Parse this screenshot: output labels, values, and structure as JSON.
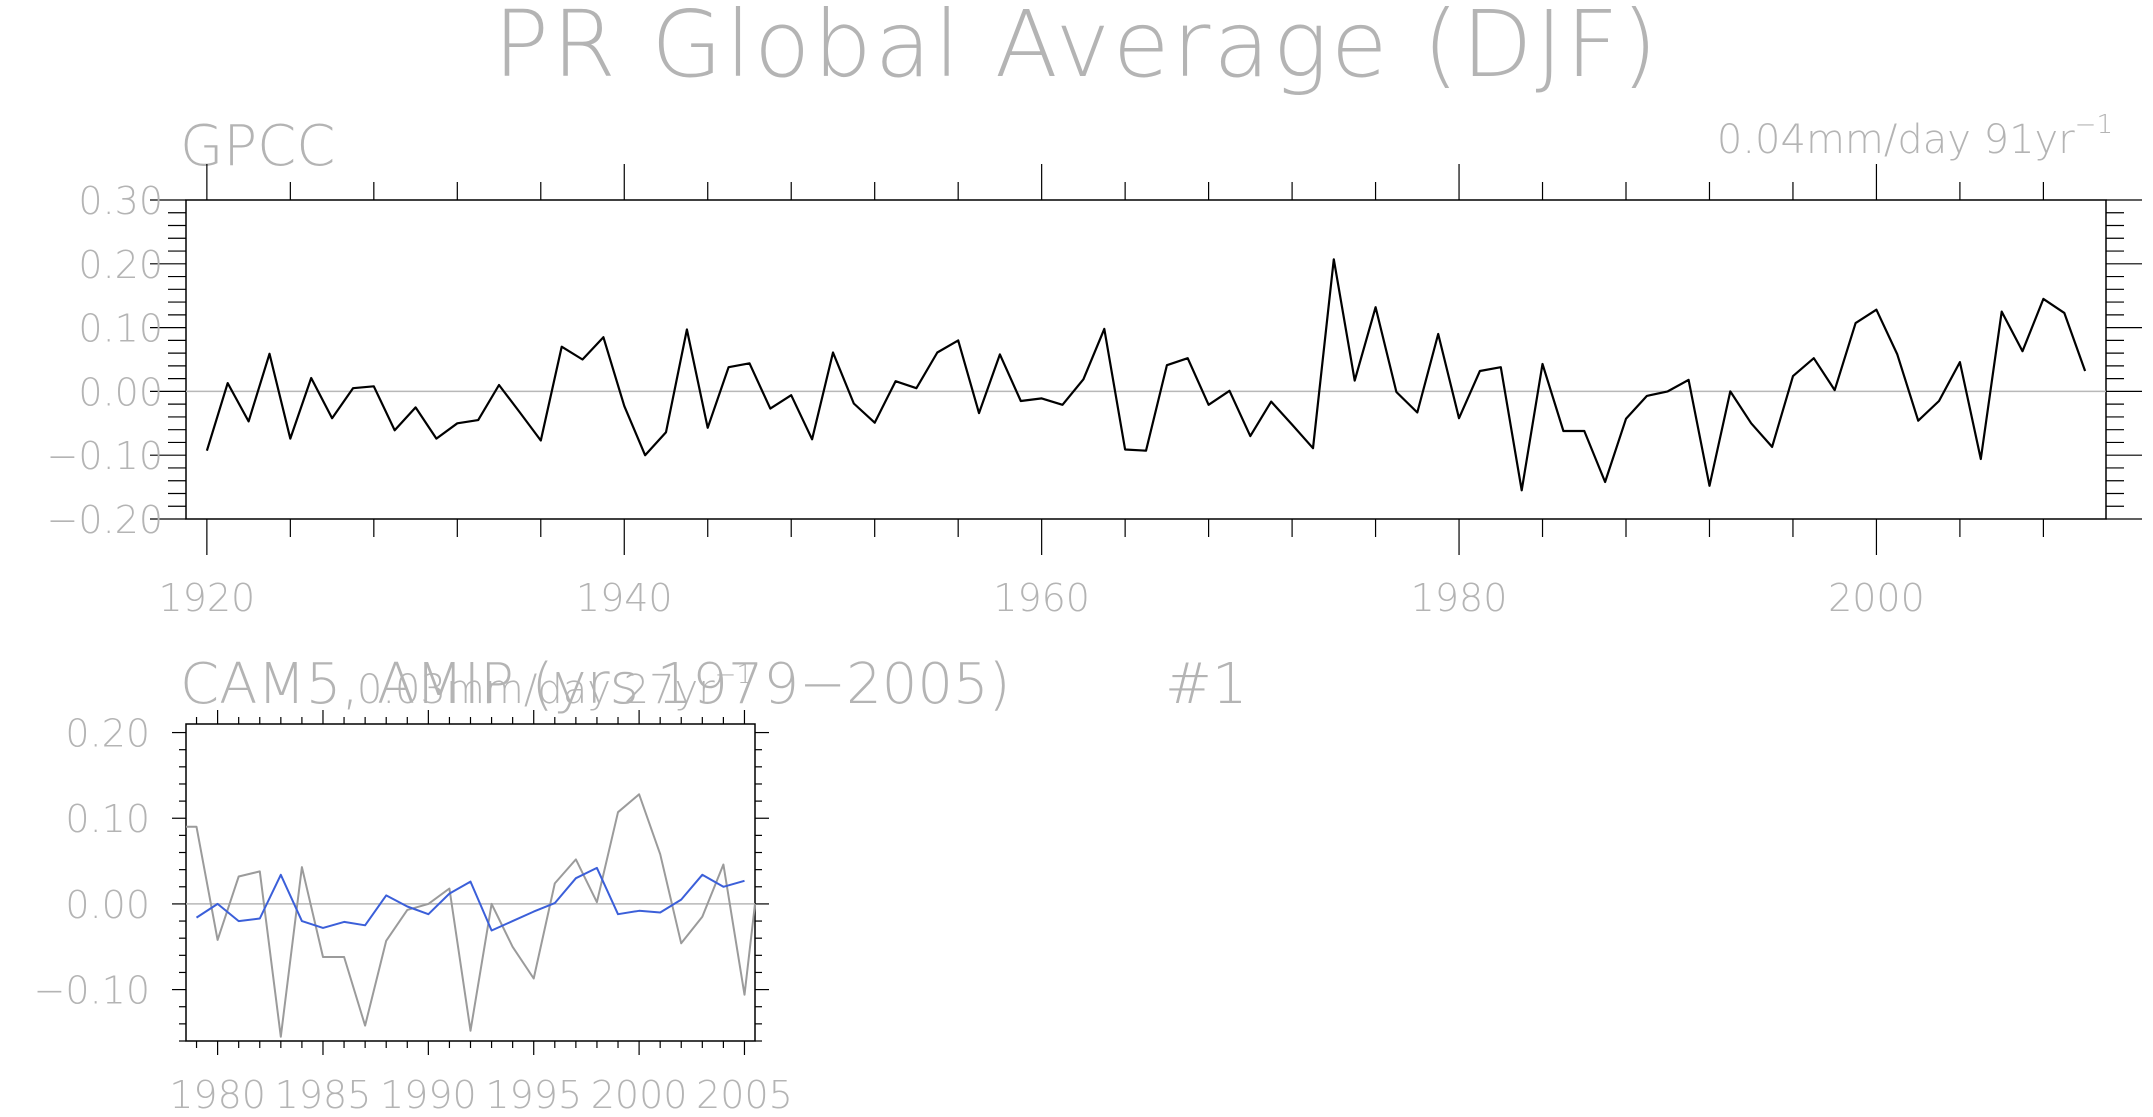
{
  "figure_title": "PR Global Average (DJF)",
  "chart_data": [
    {
      "type": "line",
      "panel_label": "GPCC",
      "trend_text": "0.04mm/day 91yr",
      "trend_exponent": "−1",
      "xlim": [
        1919,
        2011
      ],
      "ylim": [
        -0.2,
        0.3
      ],
      "x_ticks": [
        1920,
        1940,
        1960,
        1980,
        2000
      ],
      "x_tick_labels": [
        "1920",
        "1940",
        "1960",
        "1980",
        "2000"
      ],
      "y_ticks": [
        -0.2,
        -0.1,
        0.0,
        0.1,
        0.2,
        0.3
      ],
      "y_tick_labels": [
        "−0.20",
        "−0.10",
        "0.00",
        "0.10",
        "0.20",
        "0.30"
      ],
      "reference_line": 0,
      "series": [
        {
          "color": "#000000",
          "x": [
            1920,
            1921,
            1922,
            1923,
            1924,
            1925,
            1926,
            1927,
            1928,
            1929,
            1930,
            1931,
            1932,
            1933,
            1934,
            1935,
            1936,
            1937,
            1938,
            1939,
            1940,
            1941,
            1942,
            1943,
            1944,
            1945,
            1946,
            1947,
            1948,
            1949,
            1950,
            1951,
            1952,
            1953,
            1954,
            1955,
            1956,
            1957,
            1958,
            1959,
            1960,
            1961,
            1962,
            1963,
            1964,
            1965,
            1966,
            1967,
            1968,
            1969,
            1970,
            1971,
            1972,
            1973,
            1974,
            1975,
            1976,
            1977,
            1978,
            1979,
            1980,
            1981,
            1982,
            1983,
            1984,
            1985,
            1986,
            1987,
            1988,
            1989,
            1990,
            1991,
            1992,
            1993,
            1994,
            1995,
            1996,
            1997,
            1998,
            1999,
            2000,
            2001,
            2002,
            2003,
            2004,
            2005,
            2006,
            2007,
            2008,
            2009,
            2010
          ],
          "values": [
            -0.093,
            0.013,
            -0.047,
            0.059,
            -0.074,
            0.021,
            -0.042,
            0.005,
            0.008,
            -0.061,
            -0.025,
            -0.074,
            -0.05,
            -0.045,
            0.01,
            -0.033,
            -0.077,
            0.07,
            0.05,
            0.085,
            -0.023,
            -0.1,
            -0.064,
            0.097,
            -0.057,
            0.038,
            0.044,
            -0.027,
            -0.006,
            -0.075,
            0.061,
            -0.019,
            -0.049,
            0.016,
            0.005,
            0.061,
            0.08,
            -0.034,
            0.058,
            -0.015,
            -0.011,
            -0.021,
            0.019,
            0.098,
            -0.091,
            -0.093,
            0.041,
            0.052,
            -0.021,
            0.001,
            -0.07,
            -0.016,
            -0.052,
            -0.089,
            0.207,
            0.017,
            0.132,
            -0.001,
            -0.033,
            0.09,
            -0.042,
            0.032,
            0.038,
            -0.155,
            0.043,
            -0.062,
            -0.062,
            -0.142,
            -0.043,
            -0.007,
            0.0,
            0.018,
            -0.148,
            0.0,
            -0.05,
            -0.087,
            0.024,
            0.052,
            0.002,
            0.107,
            0.128,
            0.058,
            -0.046,
            -0.015,
            0.046,
            -0.106,
            0.125,
            0.063,
            0.145,
            0.123,
            0.032
          ]
        }
      ]
    },
    {
      "type": "line",
      "panel_label": "CAM5, AMIP (yrs 1979−2005)",
      "member_label": "#1",
      "trend_text": "0.03mm/day 27yr",
      "trend_exponent": "−1",
      "xlim": [
        1978.5,
        2005.5
      ],
      "ylim": [
        -0.16,
        0.21
      ],
      "x_ticks": [
        1980,
        1985,
        1990,
        1995,
        2000,
        2005
      ],
      "x_tick_labels": [
        "1980",
        "1985",
        "1990",
        "1995",
        "2000",
        "2005"
      ],
      "y_ticks": [
        -0.1,
        0.0,
        0.1,
        0.2
      ],
      "y_tick_labels": [
        "−0.10",
        "0.00",
        "0.10",
        "0.20"
      ],
      "reference_line": 0,
      "series": [
        {
          "color": "#9b9b9b",
          "x": [
            1978.5,
            1979,
            1980,
            1981,
            1982,
            1983,
            1984,
            1985,
            1986,
            1987,
            1988,
            1989,
            1990,
            1991,
            1992,
            1993,
            1994,
            1995,
            1996,
            1997,
            1998,
            1999,
            2000,
            2001,
            2002,
            2003,
            2004,
            2005,
            2005.5
          ],
          "values": [
            0.09,
            0.09,
            -0.042,
            0.032,
            0.038,
            -0.155,
            0.043,
            -0.062,
            -0.062,
            -0.142,
            -0.043,
            -0.007,
            0.0,
            0.018,
            -0.148,
            0.0,
            -0.05,
            -0.087,
            0.024,
            0.052,
            0.002,
            0.107,
            0.128,
            0.058,
            -0.046,
            -0.015,
            0.046,
            -0.106,
            0.0
          ]
        },
        {
          "color": "#3b5fd9",
          "x": [
            1979,
            1980,
            1981,
            1982,
            1983,
            1984,
            1985,
            1986,
            1987,
            1988,
            1989,
            1990,
            1991,
            1992,
            1993,
            1994,
            1995,
            1996,
            1997,
            1998,
            1999,
            2000,
            2001,
            2002,
            2003,
            2004,
            2005
          ],
          "values": [
            -0.016,
            0.0,
            -0.02,
            -0.017,
            0.034,
            -0.02,
            -0.028,
            -0.021,
            -0.025,
            0.01,
            -0.003,
            -0.012,
            0.012,
            0.026,
            -0.031,
            -0.02,
            -0.009,
            0.001,
            0.03,
            0.042,
            -0.012,
            -0.008,
            -0.01,
            0.005,
            0.034,
            0.02,
            0.027
          ]
        }
      ]
    }
  ]
}
